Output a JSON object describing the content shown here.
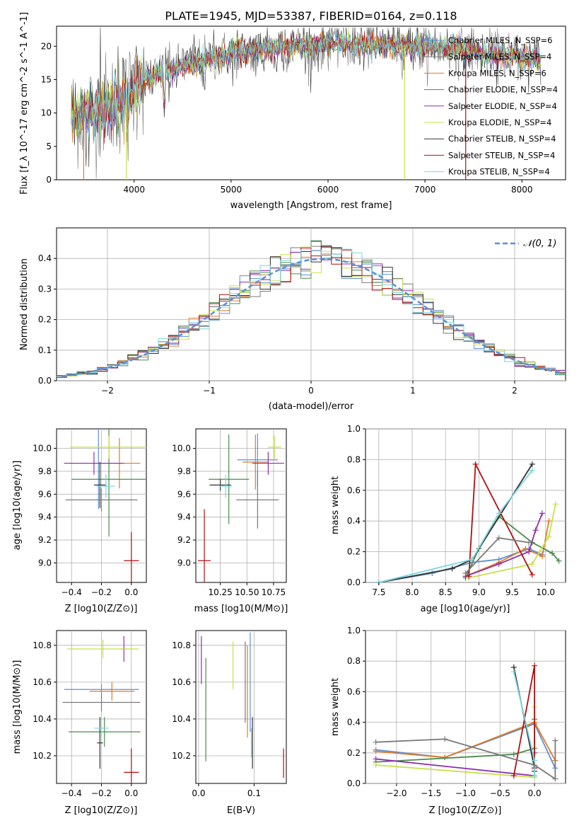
{
  "figure_title": "PLATE=1945, MJD=53387, FIBERID=0164, z=0.118",
  "model_colors": [
    "#5b8fd9",
    "#7a7a7a",
    "#e07b26",
    "#4b8a4b",
    "#8e2db0",
    "#c8e04b",
    "#333333",
    "#b01010",
    "#7ad6e0"
  ],
  "chart_data": [
    {
      "id": "spectrum",
      "type": "line",
      "xlabel": "wavelength [Angstrom, rest frame]",
      "ylabel": "Flux [f_λ 10^-17 erg cm^-2 s^-1 A^-1]",
      "xlim": [
        3200,
        8450
      ],
      "ylim": [
        0,
        23
      ],
      "xticks": [
        4000,
        5000,
        6000,
        7000,
        8000
      ],
      "yticks": [
        0,
        5,
        10,
        15,
        20
      ],
      "legend": [
        "Chabrier MILES, N_SSP=6",
        "Salpeter MILES, N_SSP=4",
        "Kroupa MILES, N_SSP=6",
        "Chabrier ELODIE, N_SSP=4",
        "Salpeter ELODIE, N_SSP=4",
        "Kroupa ELODIE, N_SSP=4",
        "Chabrier STELIB, N_SSP=4",
        "Salpeter STELIB, N_SSP=4",
        "Kroupa STELIB, N_SSP=4"
      ],
      "legend_placement": "right",
      "continuum": {
        "x": [
          3350,
          3600,
          3900,
          4100,
          4500,
          5000,
          5500,
          6000,
          6500,
          7000,
          7500,
          8000,
          8200
        ],
        "y": [
          9.5,
          10.5,
          12,
          15,
          17,
          19,
          19.8,
          20.3,
          20.2,
          20,
          19.2,
          18.3,
          18
        ]
      },
      "drops": [
        3480,
        3920,
        6790,
        7420
      ]
    },
    {
      "id": "residuals",
      "type": "histogram",
      "xlabel": "(data-model)/error",
      "ylabel": "Normed distribution",
      "xlim": [
        -2.5,
        2.5
      ],
      "ylim": [
        0,
        0.5
      ],
      "xticks": [
        -2,
        -1,
        0,
        1,
        2
      ],
      "yticks": [
        0,
        0.1,
        0.2,
        0.3,
        0.4
      ],
      "grid": true,
      "legend": [
        "𝒩(0, 1)"
      ],
      "legend_placement": "top-right",
      "normal_mean": 0.12,
      "normal_sigma": 1.0
    },
    {
      "id": "age-vs-Z",
      "type": "errorbar",
      "xlabel": "Z [log10(Z/Z⊙)]",
      "ylabel": "age [log10(age/yr)]",
      "xlim": [
        -0.5,
        0.1
      ],
      "ylim": [
        8.83,
        10.17
      ],
      "xticks": [
        -0.4,
        -0.2,
        0.0
      ],
      "yticks": [
        9.0,
        9.2,
        9.4,
        9.6,
        9.8,
        10.0
      ],
      "grid": true,
      "points": [
        {
          "x": -0.22,
          "y": 9.87,
          "xerr": 0.2,
          "yerr": 0.4,
          "c": 0
        },
        {
          "x": -0.08,
          "y": 9.87,
          "xerr": 0.14,
          "yerr": 0.22,
          "c": 2
        },
        {
          "x": -0.15,
          "y": 9.73,
          "xerr": 0.25,
          "yerr": 0.5,
          "c": 3
        },
        {
          "x": -0.25,
          "y": 9.87,
          "xerr": 0.2,
          "yerr": 0.1,
          "c": 4
        },
        {
          "x": -0.15,
          "y": 10.01,
          "xerr": 0.26,
          "yerr": 0.1,
          "c": 5
        },
        {
          "x": -0.21,
          "y": 9.68,
          "xerr": 0.04,
          "yerr": 0.2,
          "c": 6
        },
        {
          "x": 0.0,
          "y": 9.02,
          "xerr": 0.05,
          "yerr": 0.25,
          "c": 7
        },
        {
          "x": -0.17,
          "y": 9.67,
          "xerr": 0.06,
          "yerr": 0.1,
          "c": 8
        },
        {
          "x": -0.2,
          "y": 9.55,
          "xerr": 0.24,
          "yerr": 0.1,
          "c": 1
        }
      ]
    },
    {
      "id": "age-vs-mass",
      "type": "errorbar",
      "xlabel": "mass [log10(M/M⊙)]",
      "ylabel": "",
      "xlim": [
        10.02,
        10.87
      ],
      "ylim": [
        8.83,
        10.17
      ],
      "xticks": [
        10.25,
        10.5,
        10.75
      ],
      "yticks": [
        9.0,
        9.2,
        9.4,
        9.6,
        9.8,
        10.0
      ],
      "grid": true,
      "points": [
        {
          "x": 10.6,
          "y": 9.9,
          "xerr": 0.19,
          "yerr": 0.23,
          "c": 0
        },
        {
          "x": 10.58,
          "y": 9.88,
          "xerr": 0.12,
          "yerr": 0.24,
          "c": 2
        },
        {
          "x": 10.33,
          "y": 9.73,
          "xerr": 0.19,
          "yerr": 0.39,
          "c": 3
        },
        {
          "x": 10.7,
          "y": 9.87,
          "xerr": 0.15,
          "yerr": 0.1,
          "c": 4
        },
        {
          "x": 10.76,
          "y": 10.01,
          "xerr": 0.06,
          "yerr": 0.1,
          "c": 5
        },
        {
          "x": 10.25,
          "y": 9.68,
          "xerr": 0.1,
          "yerr": 0.05,
          "c": 6
        },
        {
          "x": 10.1,
          "y": 9.02,
          "xerr": 0.06,
          "yerr": 0.45,
          "c": 7
        },
        {
          "x": 10.3,
          "y": 9.67,
          "xerr": 0.06,
          "yerr": 0.1,
          "c": 8
        },
        {
          "x": 10.6,
          "y": 9.55,
          "xerr": 0.2,
          "yerr": 0.25,
          "c": 1
        }
      ]
    },
    {
      "id": "weight-vs-age",
      "type": "line",
      "xlabel": "age [log10(age/yr)]",
      "ylabel": "mass weight",
      "xlim": [
        7.3,
        10.3
      ],
      "ylim": [
        0,
        1
      ],
      "xticks": [
        7.5,
        8.0,
        8.5,
        9.0,
        9.5,
        10.0
      ],
      "yticks": [
        0.0,
        0.2,
        0.4,
        0.6,
        0.8,
        1.0
      ],
      "grid": true,
      "series": [
        {
          "c": 0,
          "x": [
            7.5,
            8.3,
            8.9,
            9.3,
            9.75,
            9.95
          ],
          "y": [
            0.0,
            0.06,
            0.13,
            0.15,
            0.22,
            0.18
          ]
        },
        {
          "c": 2,
          "x": [
            8.8,
            9.3,
            9.7,
            9.95,
            10.05
          ],
          "y": [
            0.04,
            0.13,
            0.22,
            0.17,
            0.4
          ]
        },
        {
          "c": 3,
          "x": [
            8.8,
            9.0,
            9.3,
            9.8,
            10.1,
            10.2
          ],
          "y": [
            0.03,
            0.22,
            0.43,
            0.26,
            0.19,
            0.14
          ]
        },
        {
          "c": 4,
          "x": [
            8.8,
            9.3,
            9.75,
            9.85,
            9.95
          ],
          "y": [
            0.04,
            0.12,
            0.2,
            0.34,
            0.45
          ]
        },
        {
          "c": 5,
          "x": [
            8.85,
            9.8,
            10.05,
            10.15
          ],
          "y": [
            0.03,
            0.12,
            0.3,
            0.51
          ]
        },
        {
          "c": 6,
          "x": [
            7.5,
            8.6,
            8.9,
            9.8
          ],
          "y": [
            0.0,
            0.09,
            0.15,
            0.77
          ]
        },
        {
          "c": 7,
          "x": [
            8.85,
            8.95,
            9.8
          ],
          "y": [
            0.04,
            0.77,
            0.05
          ]
        },
        {
          "c": 8,
          "x": [
            7.5,
            8.9,
            9.3,
            9.8
          ],
          "y": [
            0.0,
            0.15,
            0.45,
            0.73
          ]
        },
        {
          "c": 1,
          "x": [
            8.8,
            9.3,
            9.75
          ],
          "y": [
            0.06,
            0.29,
            0.26
          ]
        }
      ]
    },
    {
      "id": "mass-vs-Z",
      "type": "errorbar",
      "xlabel": "Z [log10(Z/Z⊙)]",
      "ylabel": "mass [log10(M/M⊙)]",
      "xlim": [
        -0.5,
        0.1
      ],
      "ylim": [
        10.05,
        10.88
      ],
      "xticks": [
        -0.4,
        -0.2,
        0.0
      ],
      "yticks": [
        10.2,
        10.4,
        10.6,
        10.8
      ],
      "grid": true,
      "points": [
        {
          "x": -0.2,
          "y": 10.56,
          "xerr": 0.25,
          "yerr": 0.03,
          "c": 0
        },
        {
          "x": -0.13,
          "y": 10.55,
          "xerr": 0.15,
          "yerr": 0.05,
          "c": 2
        },
        {
          "x": -0.18,
          "y": 10.33,
          "xerr": 0.24,
          "yerr": 0.08,
          "c": 3
        },
        {
          "x": -0.05,
          "y": 10.78,
          "xerr": 0.02,
          "yerr": 0.07,
          "c": 4
        },
        {
          "x": -0.19,
          "y": 10.78,
          "xerr": 0.24,
          "yerr": 0.05,
          "c": 5
        },
        {
          "x": -0.21,
          "y": 10.27,
          "xerr": 0.02,
          "yerr": 0.14,
          "c": 6
        },
        {
          "x": 0.0,
          "y": 10.11,
          "xerr": 0.05,
          "yerr": 0.13,
          "c": 7
        },
        {
          "x": -0.2,
          "y": 10.35,
          "xerr": 0.05,
          "yerr": 0.05,
          "c": 8
        },
        {
          "x": -0.2,
          "y": 10.49,
          "xerr": 0.26,
          "yerr": 0.05,
          "c": 1
        }
      ]
    },
    {
      "id": "mass-vs-EBV",
      "type": "errorbar",
      "xlabel": "E(B-V)",
      "ylabel": "",
      "xlim": [
        -0.005,
        0.158
      ],
      "ylim": [
        10.05,
        10.88
      ],
      "xticks": [
        0.0,
        0.1
      ],
      "yticks": [
        10.2,
        10.4,
        10.6,
        10.8
      ],
      "grid": true,
      "points": [
        {
          "x": 0.093,
          "y": 10.6,
          "yerr": 0.27,
          "c": 0
        },
        {
          "x": 0.088,
          "y": 10.55,
          "yerr": 0.25,
          "c": 2
        },
        {
          "x": 0.013,
          "y": 10.45,
          "yerr": 0.28,
          "c": 3
        },
        {
          "x": 0.005,
          "y": 10.72,
          "yerr": 0.13,
          "c": 4
        },
        {
          "x": 0.062,
          "y": 10.69,
          "yerr": 0.13,
          "c": 5
        },
        {
          "x": 0.097,
          "y": 10.27,
          "yerr": 0.14,
          "c": 6
        },
        {
          "x": 0.153,
          "y": 10.16,
          "yerr": 0.08,
          "c": 7
        },
        {
          "x": 0.095,
          "y": 10.27,
          "yerr": 0.08,
          "c": 8
        },
        {
          "x": 0.084,
          "y": 10.6,
          "yerr": 0.22,
          "c": 1
        }
      ]
    },
    {
      "id": "weight-vs-Z",
      "type": "line",
      "xlabel": "Z [log10(Z/Z⊙)]",
      "ylabel": "mass weight",
      "xlim": [
        -2.45,
        0.45
      ],
      "ylim": [
        0,
        1
      ],
      "xticks": [
        -2.0,
        -1.5,
        -1.0,
        -0.5,
        0.0
      ],
      "yticks": [
        0.0,
        0.2,
        0.4,
        0.6,
        0.8,
        1.0
      ],
      "grid": true,
      "series": [
        {
          "c": 0,
          "x": [
            -2.3,
            -1.3,
            0.0,
            0.3
          ],
          "y": [
            0.22,
            0.17,
            0.39,
            0.1
          ]
        },
        {
          "c": 2,
          "x": [
            -2.3,
            -1.3,
            0.0,
            0.3
          ],
          "y": [
            0.21,
            0.17,
            0.4,
            0.15
          ]
        },
        {
          "c": 3,
          "x": [
            -2.3,
            -0.3,
            0.0,
            0.0
          ],
          "y": [
            0.14,
            0.19,
            0.23,
            0.42
          ]
        },
        {
          "c": 4,
          "x": [
            -2.3,
            0.0,
            0.0
          ],
          "y": [
            0.16,
            0.05,
            0.2
          ]
        },
        {
          "c": 5,
          "x": [
            -2.3,
            0.0,
            0.0
          ],
          "y": [
            0.12,
            0.04,
            0.5
          ]
        },
        {
          "c": 6,
          "x": [
            -0.3,
            0.0,
            0.0
          ],
          "y": [
            0.76,
            0.1,
            0.08
          ]
        },
        {
          "c": 7,
          "x": [
            -0.3,
            0.0,
            0.0
          ],
          "y": [
            0.05,
            0.77,
            0.1
          ]
        },
        {
          "c": 8,
          "x": [
            -0.3,
            0.0,
            0.0
          ],
          "y": [
            0.73,
            0.15,
            0.05
          ]
        },
        {
          "c": 1,
          "x": [
            -2.3,
            -1.3,
            0.0,
            0.3,
            0.3
          ],
          "y": [
            0.27,
            0.29,
            0.12,
            0.03,
            0.28
          ]
        }
      ]
    }
  ]
}
